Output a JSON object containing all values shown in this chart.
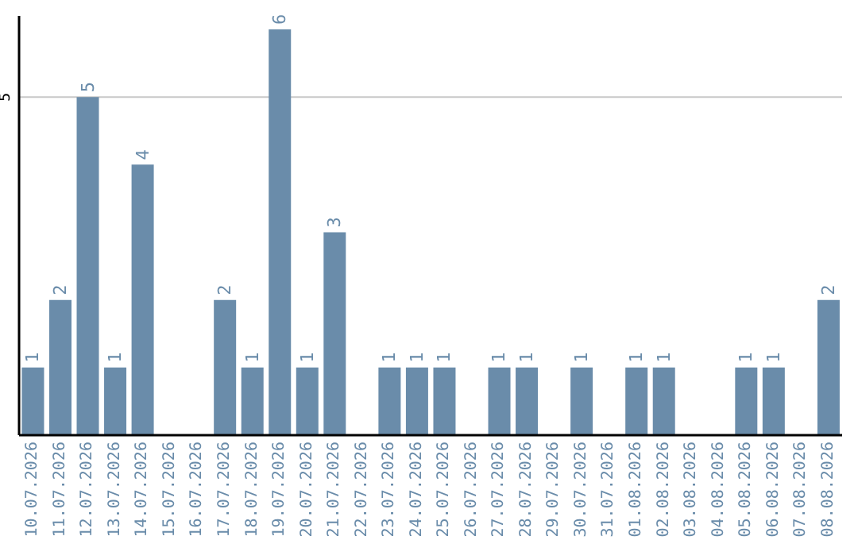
{
  "chart_data": {
    "type": "bar",
    "categories": [
      "10.07.2026",
      "11.07.2026",
      "12.07.2026",
      "13.07.2026",
      "14.07.2026",
      "15.07.2026",
      "16.07.2026",
      "17.07.2026",
      "18.07.2026",
      "19.07.2026",
      "20.07.2026",
      "21.07.2026",
      "22.07.2026",
      "23.07.2026",
      "24.07.2026",
      "25.07.2026",
      "26.07.2026",
      "27.07.2026",
      "28.07.2026",
      "29.07.2026",
      "30.07.2026",
      "31.07.2026",
      "01.08.2026",
      "02.08.2026",
      "03.08.2026",
      "04.08.2026",
      "05.08.2026",
      "06.08.2026",
      "07.08.2026",
      "08.08.2026"
    ],
    "values": [
      1,
      2,
      5,
      1,
      4,
      0,
      0,
      2,
      1,
      6,
      1,
      3,
      0,
      1,
      1,
      1,
      0,
      1,
      1,
      0,
      1,
      0,
      1,
      1,
      0,
      0,
      1,
      1,
      0,
      2
    ],
    "value_labels": [
      "1",
      "2",
      "5",
      "1",
      "4",
      null,
      null,
      "2",
      "1",
      "6",
      "1",
      "3",
      null,
      "1",
      "1",
      "1",
      null,
      "1",
      "1",
      null,
      "1",
      null,
      "1",
      "1",
      null,
      null,
      "1",
      "1",
      null,
      "2"
    ],
    "color": "#6a8caa",
    "ylim": [
      0,
      6.2
    ],
    "yticks": [
      5
    ],
    "grid": "y"
  }
}
